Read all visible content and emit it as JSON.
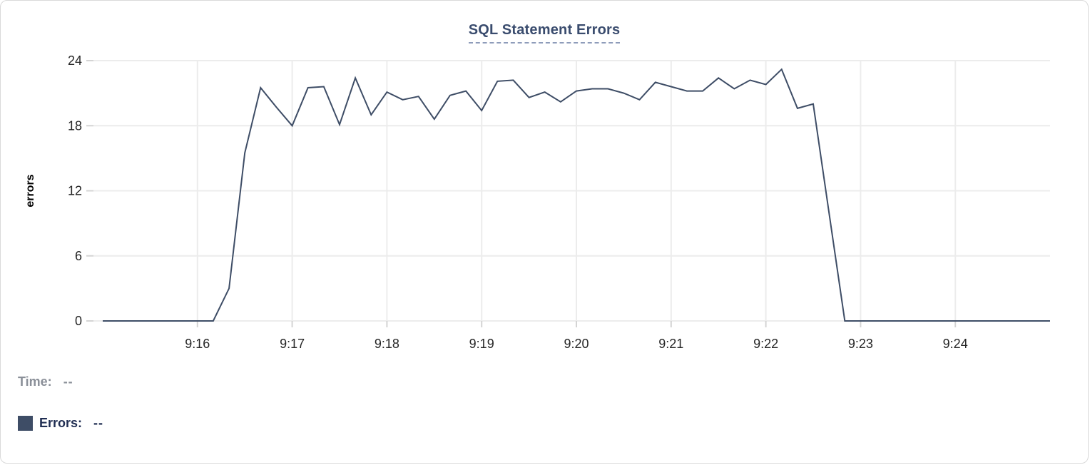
{
  "chart_data": {
    "type": "line",
    "title": "SQL Statement Errors",
    "xlabel": "",
    "ylabel": "errors",
    "x_tick_labels": [
      "9:16",
      "9:17",
      "9:18",
      "9:19",
      "9:20",
      "9:21",
      "9:22",
      "9:23",
      "9:24"
    ],
    "y_tick_labels": [
      "0",
      "6",
      "12",
      "18",
      "24"
    ],
    "ylim": [
      0,
      24
    ],
    "x_start": "9:15:00",
    "x_end": "9:25:00",
    "sample_interval_seconds": 10,
    "grid": true,
    "legend_position": "bottom-left",
    "series": [
      {
        "name": "Errors",
        "color": "#3e4d66",
        "values": [
          0,
          0,
          0,
          0,
          0,
          0,
          0,
          0,
          3,
          15.5,
          21.5,
          19.7,
          18,
          21.5,
          21.6,
          18.1,
          22.4,
          19,
          21.1,
          20.4,
          20.7,
          18.6,
          20.8,
          21.2,
          19.4,
          22.1,
          22.2,
          20.6,
          21.1,
          20.2,
          21.2,
          21.4,
          21.4,
          21,
          20.4,
          22,
          21.6,
          21.2,
          21.2,
          22.4,
          21.4,
          22.2,
          21.8,
          23.2,
          19.6,
          20,
          10,
          0,
          0,
          0,
          0,
          0,
          0,
          0,
          0,
          0,
          0,
          0,
          0,
          0,
          0
        ]
      }
    ]
  },
  "readout": {
    "time_label": "Time:",
    "time_value": "--",
    "errors_label": "Errors:",
    "errors_value": "--",
    "swatch_color": "#3e4d66"
  },
  "colors": {
    "grid_line": "#ececec",
    "axis_tick": "#d4d4d4",
    "tick_text": "#262626",
    "axis_title_text": "#000000",
    "title_text": "#3a4c6e",
    "title_underline": "#8e9cba",
    "muted_text": "#8a8f98",
    "legend_text": "#1f2d52",
    "card_border": "#d9d9d9",
    "background": "#ffffff"
  }
}
